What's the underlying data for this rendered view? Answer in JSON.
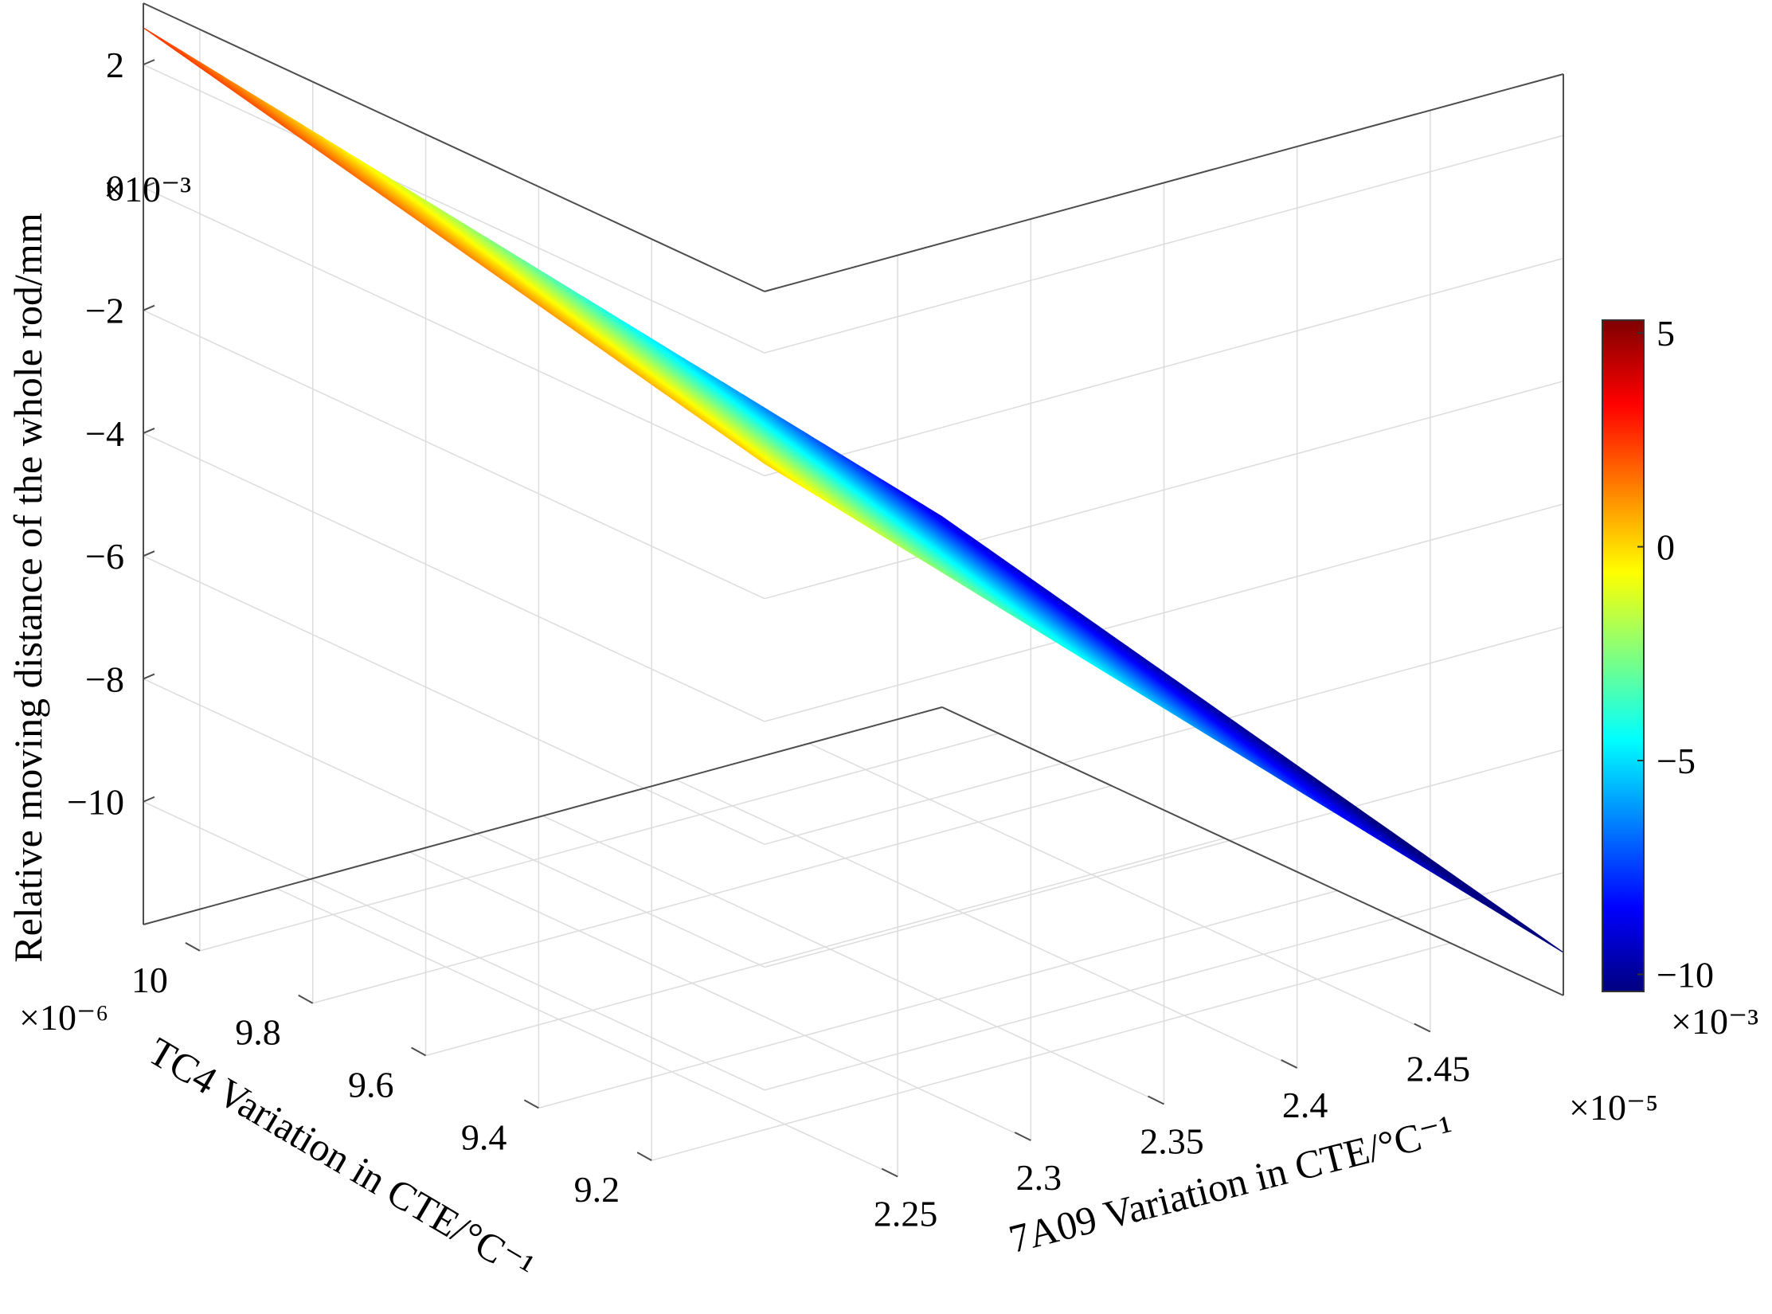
{
  "chart_data": {
    "type": "surface",
    "title": "",
    "x_axis": {
      "label": "7A09 Variation in CTE/°C⁻¹",
      "exponent": "×10⁻⁵",
      "ticks": [
        2.25,
        2.3,
        2.35,
        2.4,
        2.45
      ],
      "tick_labels": [
        "2.25",
        "2.3",
        "2.35",
        "2.4",
        "2.45"
      ],
      "range": [
        2.2,
        2.5
      ]
    },
    "y_axis": {
      "label": "TC4 Variation in CTE/°C⁻¹",
      "exponent": "×10⁻⁶",
      "ticks": [
        9.2,
        9.4,
        9.6,
        9.8,
        10
      ],
      "tick_labels": [
        "9.2",
        "9.4",
        "9.6",
        "9.8",
        "10"
      ],
      "range": [
        9.0,
        10.1
      ]
    },
    "z_axis": {
      "label": "Relative moving distance of the whole rod/mm",
      "exponent": "×10⁻³",
      "ticks": [
        -10,
        -8,
        -6,
        -4,
        -2,
        0,
        2
      ],
      "tick_labels": [
        "−10",
        "−8",
        "−6",
        "−4",
        "−2",
        "0",
        "2"
      ],
      "range": [
        -12,
        3
      ]
    },
    "surface_corners": [
      {
        "x": 2.2,
        "y": 10.1,
        "z": 2.6
      },
      {
        "x": 2.2,
        "y": 9.0,
        "z": 0.2
      },
      {
        "x": 2.5,
        "y": 9.0,
        "z": -11.3
      },
      {
        "x": 2.5,
        "y": 10.1,
        "z": -8.9
      }
    ],
    "colorbar": {
      "range": [
        -10.4,
        5.3
      ],
      "ticks": [
        5,
        0,
        -5,
        -10
      ],
      "tick_labels": [
        "5",
        "0",
        "−5",
        "−10"
      ],
      "exponent": "×10⁻³",
      "colormap": "jet"
    },
    "grid": true
  }
}
